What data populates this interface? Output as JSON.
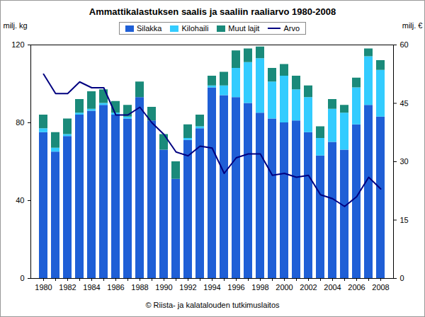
{
  "chart_data": {
    "type": "bar",
    "title": "Ammattikalastuksen saalis ja saaliin raaliarvo 1980-2008",
    "caption": "© Riista- ja kalatalouden tutkimuslaitos",
    "y_label": "milj. kg",
    "y2_label": "milj. €",
    "categories": [
      "1980",
      null,
      "1982",
      null,
      "1984",
      null,
      "1986",
      null,
      "1988",
      null,
      "1990",
      null,
      "1992",
      null,
      "1994",
      null,
      "1996",
      null,
      "1998",
      null,
      "2000",
      null,
      "2002",
      null,
      "2004",
      null,
      "2006",
      null,
      "2008"
    ],
    "series": [
      {
        "name": "Silakka",
        "type": "bar",
        "color": "#1f5fd6",
        "values": [
          75,
          65,
          73,
          84,
          86,
          89,
          84,
          82,
          93,
          81,
          66,
          51,
          71,
          77,
          98,
          94,
          93,
          90,
          85,
          82,
          80,
          81,
          75,
          63,
          70,
          66,
          79,
          89,
          83
        ]
      },
      {
        "name": "Kilohaili",
        "type": "bar",
        "color": "#33ccff",
        "values": [
          2,
          2,
          1,
          1,
          1,
          1,
          1,
          1,
          0,
          0,
          0,
          0,
          1,
          1,
          1,
          5,
          15,
          21,
          28,
          19,
          24,
          16,
          18,
          9,
          17,
          19,
          19,
          25,
          24
        ]
      },
      {
        "name": "Muut lajit",
        "type": "bar",
        "color": "#1a8a7a",
        "values": [
          7,
          8,
          8,
          7,
          9,
          7,
          6,
          6,
          8,
          7,
          8,
          9,
          7,
          6,
          5,
          7,
          9,
          7,
          6,
          7,
          6,
          7,
          6,
          6,
          5,
          4,
          5,
          4,
          5
        ]
      },
      {
        "name": "Arvo",
        "type": "line",
        "axis": "y2",
        "color": "#000080",
        "values": [
          52.5,
          47.5,
          47.5,
          50.5,
          49,
          49,
          42,
          42,
          44,
          40,
          37,
          32.5,
          31.5,
          34,
          33.5,
          27,
          31,
          32,
          32,
          26.5,
          27,
          26,
          26.5,
          21.5,
          20.5,
          18.5,
          21,
          26,
          23
        ]
      }
    ],
    "stacked": true,
    "ylim": [
      0,
      120
    ],
    "yticks": [
      0,
      40,
      80,
      120
    ],
    "y2lim": [
      0,
      60
    ],
    "y2ticks": [
      0,
      15,
      30,
      45,
      60
    ],
    "grid": false,
    "legend": "top"
  }
}
